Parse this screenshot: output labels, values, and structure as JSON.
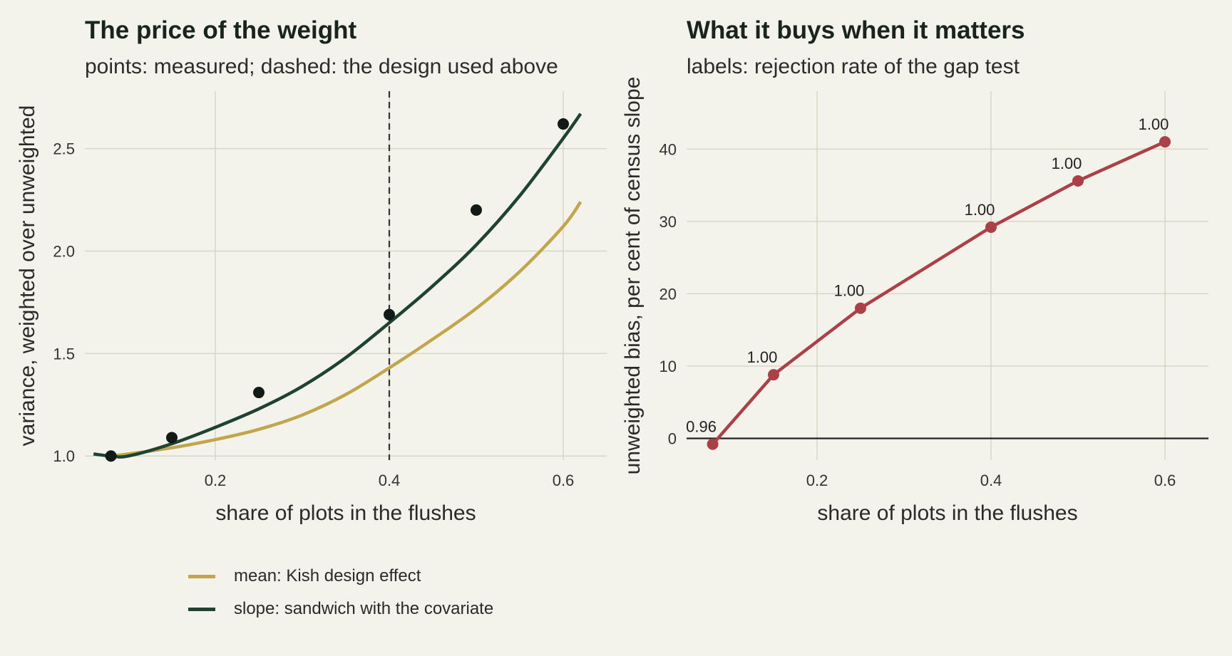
{
  "colors": {
    "background": "#f3f2eb",
    "grid": "#d9d6c8",
    "mean": "#c2a64e",
    "slope": "#1e4330",
    "points": "#111a16",
    "bias": "#ab4146",
    "zero_line": "#222222",
    "vline": "#333333"
  },
  "chart_data": [
    {
      "type": "line",
      "title": "The price of the weight",
      "subtitle": "points: measured; dashed: the design used above",
      "xlabel": "share of plots in the flushes",
      "ylabel": "variance, weighted over unweighted",
      "xlim": [
        0.05,
        0.65
      ],
      "ylim": [
        0.98,
        2.78
      ],
      "xticks": [
        0.2,
        0.4,
        0.6
      ],
      "xtick_labels": [
        "0.2",
        "0.4",
        "0.6"
      ],
      "yticks": [
        1.0,
        1.5,
        2.0,
        2.5
      ],
      "ytick_labels": [
        "1.0",
        "1.5",
        "2.0",
        "2.5"
      ],
      "grid": true,
      "vline_x": 0.4,
      "series": [
        {
          "name": "mean: Kish design effect",
          "color": "#c2a64e",
          "x": [
            0.08,
            0.1,
            0.15,
            0.2,
            0.25,
            0.3,
            0.35,
            0.4,
            0.45,
            0.5,
            0.55,
            0.6,
            0.62
          ],
          "y": [
            1.0,
            1.01,
            1.04,
            1.08,
            1.13,
            1.2,
            1.3,
            1.43,
            1.57,
            1.72,
            1.9,
            2.12,
            2.24
          ]
        },
        {
          "name": "slope: sandwich with the covariate",
          "color": "#1e4330",
          "x": [
            0.06,
            0.08,
            0.1,
            0.15,
            0.2,
            0.25,
            0.3,
            0.35,
            0.4,
            0.45,
            0.5,
            0.55,
            0.6,
            0.62
          ],
          "y": [
            1.01,
            1.0,
            1.0,
            1.06,
            1.14,
            1.23,
            1.34,
            1.48,
            1.65,
            1.83,
            2.03,
            2.27,
            2.55,
            2.67
          ]
        }
      ],
      "points": {
        "x": [
          0.08,
          0.15,
          0.25,
          0.4,
          0.5,
          0.6
        ],
        "y": [
          1.0,
          1.09,
          1.31,
          1.69,
          2.2,
          2.62
        ]
      },
      "legend_position": "bottom"
    },
    {
      "type": "line",
      "title": "What it buys when it matters",
      "subtitle": "labels: rejection rate of the gap test",
      "xlabel": "share of plots in the flushes",
      "ylabel": "unweighted bias, per cent of census slope",
      "xlim": [
        0.05,
        0.65
      ],
      "ylim": [
        -3,
        48
      ],
      "xticks": [
        0.2,
        0.4,
        0.6
      ],
      "xtick_labels": [
        "0.2",
        "0.4",
        "0.6"
      ],
      "yticks": [
        0,
        10,
        20,
        30,
        40
      ],
      "ytick_labels": [
        "0",
        "10",
        "20",
        "30",
        "40"
      ],
      "grid": true,
      "hline_y": 0,
      "series": [
        {
          "color": "#ab4146",
          "x": [
            0.08,
            0.15,
            0.25,
            0.4,
            0.5,
            0.6
          ],
          "y": [
            -0.8,
            8.8,
            18.0,
            29.2,
            35.6,
            41.0
          ]
        }
      ],
      "point_labels": [
        "0.96",
        "1.00",
        "1.00",
        "1.00",
        "1.00",
        "1.00"
      ]
    }
  ]
}
